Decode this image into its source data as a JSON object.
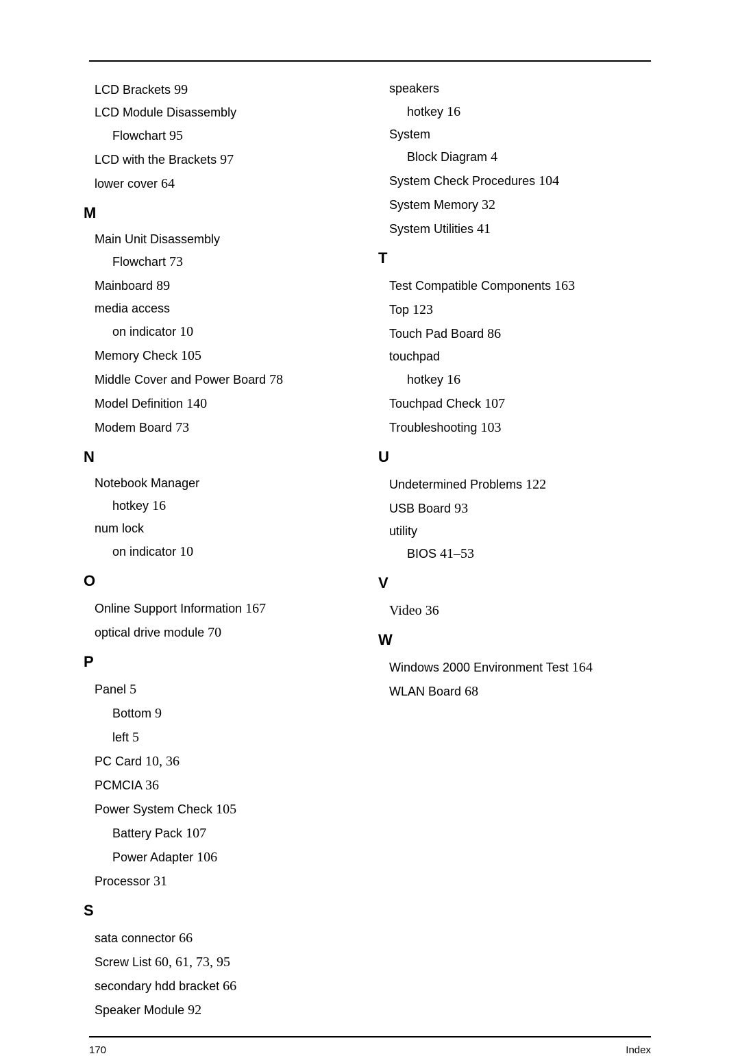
{
  "footer": {
    "page_number": "170",
    "section": "Index"
  },
  "left_column": [
    {
      "type": "entry",
      "term": "LCD Brackets",
      "page": "99"
    },
    {
      "type": "entry",
      "term": "LCD Module Disassembly",
      "page": ""
    },
    {
      "type": "sub",
      "term": "Flowchart",
      "page": "95"
    },
    {
      "type": "entry",
      "term": "LCD with the Brackets",
      "page": "97"
    },
    {
      "type": "entry",
      "term": "lower cover",
      "page": "64"
    },
    {
      "type": "letter",
      "label": "M"
    },
    {
      "type": "entry",
      "term": "Main Unit Disassembly",
      "page": ""
    },
    {
      "type": "sub",
      "term": "Flowchart",
      "page": "73"
    },
    {
      "type": "entry",
      "term": "Mainboard",
      "page": "89"
    },
    {
      "type": "entry",
      "term": "media access",
      "page": ""
    },
    {
      "type": "sub",
      "term": "on indicator",
      "page": "10"
    },
    {
      "type": "entry",
      "term": "Memory Check",
      "page": "105"
    },
    {
      "type": "entry",
      "term": "Middle Cover and Power Board",
      "page": "78"
    },
    {
      "type": "entry",
      "term": "Model Definition",
      "page": "140"
    },
    {
      "type": "entry",
      "term": "Modem Board",
      "page": "73"
    },
    {
      "type": "letter",
      "label": "N"
    },
    {
      "type": "entry",
      "term": "Notebook Manager",
      "page": ""
    },
    {
      "type": "sub",
      "term": "hotkey",
      "page": "16"
    },
    {
      "type": "entry",
      "term": "num lock",
      "page": ""
    },
    {
      "type": "sub",
      "term": "on indicator",
      "page": "10"
    },
    {
      "type": "letter",
      "label": "O"
    },
    {
      "type": "entry",
      "term": "Online Support Information",
      "page": "167"
    },
    {
      "type": "entry",
      "term": "optical drive module",
      "page": "70"
    },
    {
      "type": "letter",
      "label": "P"
    },
    {
      "type": "entry",
      "term": "Panel",
      "page": "5"
    },
    {
      "type": "sub",
      "term": "Bottom",
      "page": "9"
    },
    {
      "type": "sub",
      "term": "left",
      "page": "5"
    },
    {
      "type": "entry",
      "term": "PC Card",
      "page": "10, 36"
    },
    {
      "type": "entry",
      "term": "PCMCIA",
      "page": "36"
    },
    {
      "type": "entry",
      "term": "Power System Check",
      "page": "105"
    },
    {
      "type": "sub",
      "term": "Battery Pack",
      "page": "107"
    },
    {
      "type": "sub",
      "term": "Power Adapter",
      "page": "106"
    },
    {
      "type": "entry",
      "term": "Processor",
      "page": "31"
    },
    {
      "type": "letter",
      "label": "S"
    },
    {
      "type": "entry",
      "term": "sata connector",
      "page": "66"
    },
    {
      "type": "entry",
      "term": "Screw List",
      "page": "60, 61, 73, 95"
    },
    {
      "type": "entry",
      "term": "secondary hdd bracket",
      "page": "66"
    },
    {
      "type": "entry",
      "term": "Speaker Module",
      "page": "92"
    }
  ],
  "right_column": [
    {
      "type": "entry",
      "term": "speakers",
      "page": ""
    },
    {
      "type": "sub",
      "term": "hotkey",
      "page": "16"
    },
    {
      "type": "entry",
      "term": "System",
      "page": ""
    },
    {
      "type": "sub",
      "term": "Block Diagram",
      "page": "4"
    },
    {
      "type": "entry",
      "term": "System Check Procedures",
      "page": "104"
    },
    {
      "type": "entry",
      "term": "System Memory",
      "page": "32"
    },
    {
      "type": "entry",
      "term": "System Utilities",
      "page": "41"
    },
    {
      "type": "letter",
      "label": "T"
    },
    {
      "type": "entry",
      "term": "Test Compatible Components",
      "page": "163"
    },
    {
      "type": "entry",
      "term": "Top",
      "page": "123"
    },
    {
      "type": "entry",
      "term": "Touch Pad Board",
      "page": "86"
    },
    {
      "type": "entry",
      "term": "touchpad",
      "page": ""
    },
    {
      "type": "sub",
      "term": "hotkey",
      "page": "16"
    },
    {
      "type": "entry",
      "term": "Touchpad Check",
      "page": "107"
    },
    {
      "type": "entry",
      "term": "Troubleshooting",
      "page": "103"
    },
    {
      "type": "letter",
      "label": "U"
    },
    {
      "type": "entry",
      "term": "Undetermined Problems",
      "page": "122"
    },
    {
      "type": "entry",
      "term": "USB Board",
      "page": "93"
    },
    {
      "type": "entry",
      "term": "utility",
      "page": ""
    },
    {
      "type": "sub",
      "term": "BIOS",
      "page": "41–53"
    },
    {
      "type": "letter",
      "label": "V"
    },
    {
      "type": "entry",
      "term": "Video",
      "page": "36",
      "serif_term": true
    },
    {
      "type": "letter",
      "label": "W"
    },
    {
      "type": "entry",
      "term": "Windows 2000 Environment Test",
      "page": "164"
    },
    {
      "type": "entry",
      "term": "WLAN Board",
      "page": "68"
    }
  ]
}
